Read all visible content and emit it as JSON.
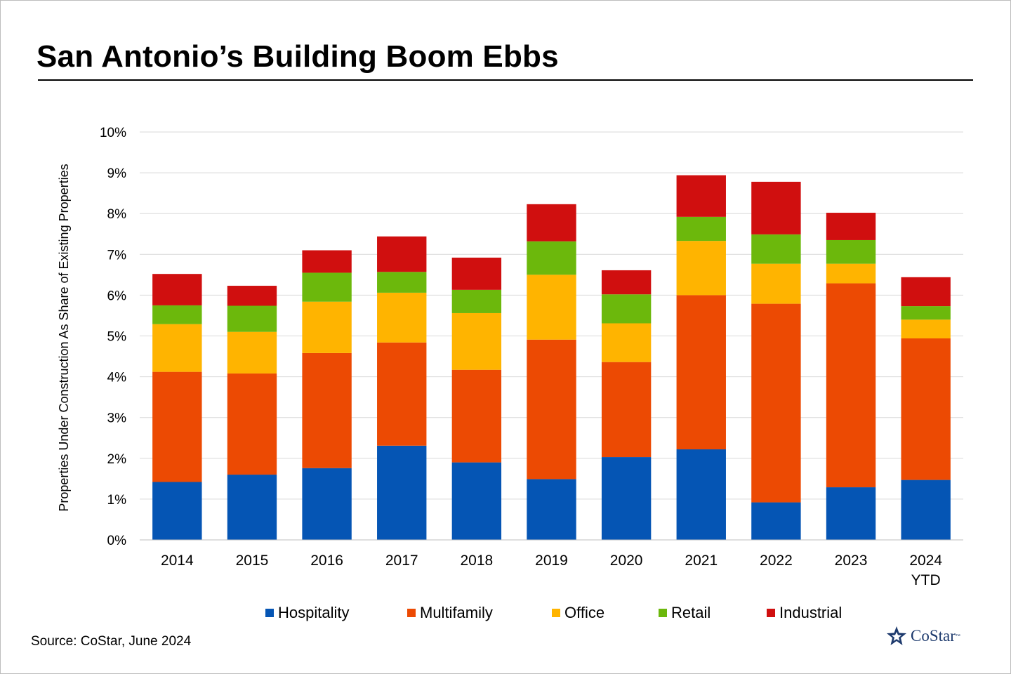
{
  "title": "San Antonio’s Building Boom Ebbs",
  "source": "Source: CoStar, June 2024",
  "logo": {
    "text": "CoStar",
    "tm": "™",
    "color": "#1d3a6d"
  },
  "chart_data": {
    "type": "bar",
    "stacked": true,
    "title": "San Antonio’s Building Boom Ebbs",
    "xlabel": "",
    "ylabel": "Properties Under Construction As Share of Existing Properties",
    "ylim": [
      0,
      10
    ],
    "y_ticks": [
      "0%",
      "1%",
      "2%",
      "3%",
      "4%",
      "5%",
      "6%",
      "7%",
      "8%",
      "9%",
      "10%"
    ],
    "y_tick_values": [
      0,
      1,
      2,
      3,
      4,
      5,
      6,
      7,
      8,
      9,
      10
    ],
    "grid": true,
    "legend_position": "bottom",
    "categories": [
      "2014",
      "2015",
      "2016",
      "2017",
      "2018",
      "2019",
      "2020",
      "2021",
      "2022",
      "2023",
      "2024 YTD"
    ],
    "series": [
      {
        "name": "Hospitality",
        "color": "#0555b4",
        "values": [
          1.42,
          1.6,
          1.76,
          2.31,
          1.9,
          1.49,
          2.03,
          2.22,
          0.92,
          1.29,
          1.47
        ]
      },
      {
        "name": "Multifamily",
        "color": "#ec4a03",
        "values": [
          2.7,
          2.48,
          2.82,
          2.53,
          2.27,
          3.42,
          2.33,
          3.78,
          4.87,
          5.0,
          3.47
        ]
      },
      {
        "name": "Office",
        "color": "#ffb400",
        "values": [
          1.17,
          1.02,
          1.26,
          1.22,
          1.39,
          1.59,
          0.95,
          1.33,
          0.98,
          0.48,
          0.46
        ]
      },
      {
        "name": "Retail",
        "color": "#6cb80c",
        "values": [
          0.46,
          0.64,
          0.71,
          0.51,
          0.57,
          0.82,
          0.71,
          0.59,
          0.72,
          0.58,
          0.33
        ]
      },
      {
        "name": "Industrial",
        "color": "#d00f0f",
        "values": [
          0.77,
          0.49,
          0.55,
          0.87,
          0.79,
          0.91,
          0.59,
          1.02,
          1.29,
          0.67,
          0.71
        ]
      }
    ]
  }
}
